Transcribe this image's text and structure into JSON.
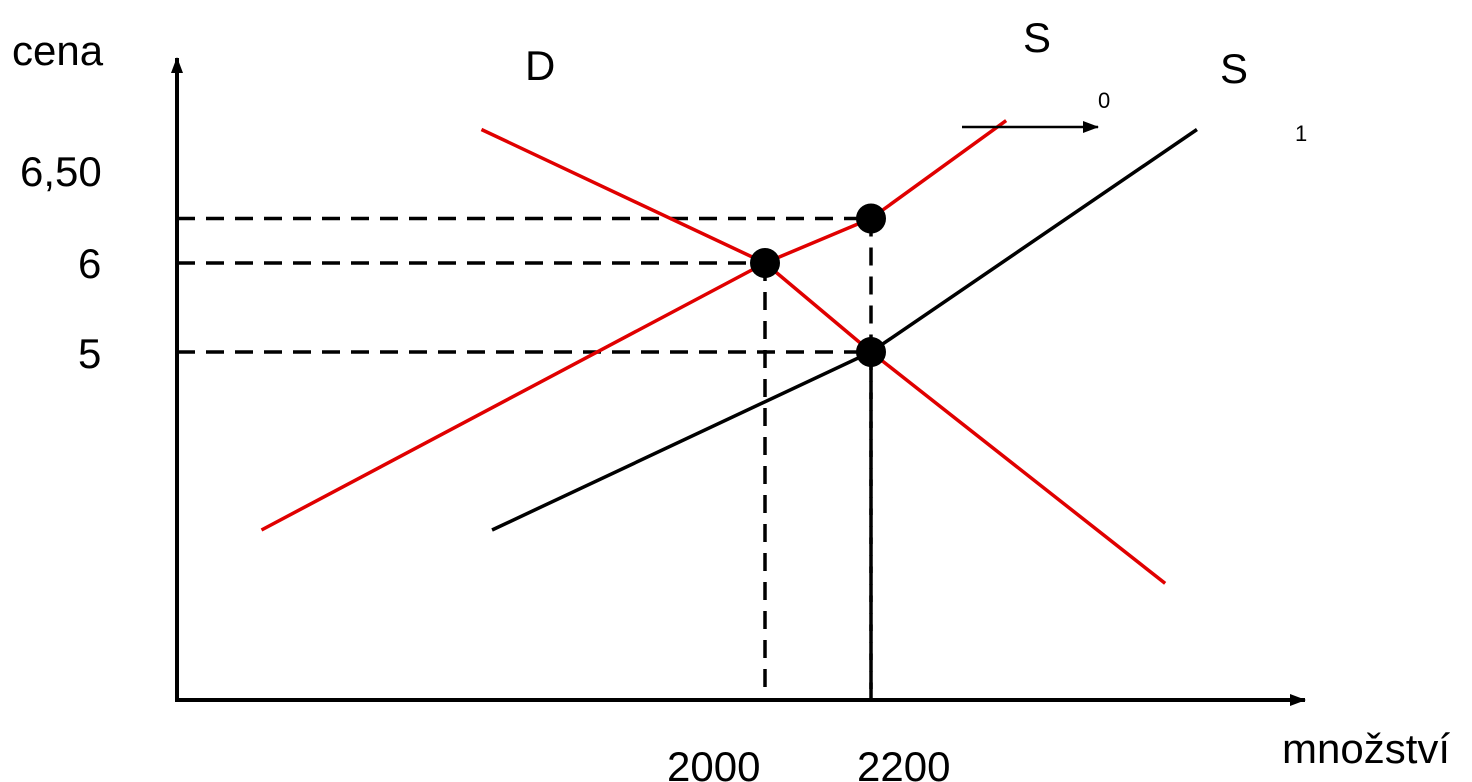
{
  "chart_data": {
    "type": "line",
    "title": "",
    "xlabel": "množství",
    "ylabel": "cena",
    "grid": false,
    "legend": "none",
    "x_ticks": [
      "2000",
      "2200"
    ],
    "y_ticks": [
      "6,50",
      "6",
      "5"
    ],
    "series": [
      {
        "name": "D",
        "color": "#e00000",
        "points": [
          [
            1465,
            7.5
          ],
          [
            2000,
            6
          ],
          [
            2200,
            5
          ],
          [
            2755,
            2.4
          ]
        ]
      },
      {
        "name": "S",
        "subscript": "0",
        "color": "#e00000",
        "points": [
          [
            1050,
            3
          ],
          [
            2000,
            6
          ],
          [
            2200,
            6.5
          ],
          [
            2455,
            7.6
          ]
        ]
      },
      {
        "name": "S",
        "subscript": "1",
        "color": "#000000",
        "points": [
          [
            1485,
            3
          ],
          [
            2200,
            5
          ],
          [
            2815,
            7.5
          ]
        ]
      }
    ],
    "equilibria": [
      {
        "x": 2000,
        "y": 6
      },
      {
        "x": 2200,
        "y": 5
      },
      {
        "x": 2200,
        "y": 6.5
      }
    ],
    "guides": [
      {
        "x": 2000,
        "y": 6
      },
      {
        "x": 2200,
        "y": 5
      },
      {
        "x": 2200,
        "y": 6.5
      }
    ],
    "shift_arrow": {
      "direction": "right",
      "from": "S0",
      "to": "S1"
    }
  }
}
